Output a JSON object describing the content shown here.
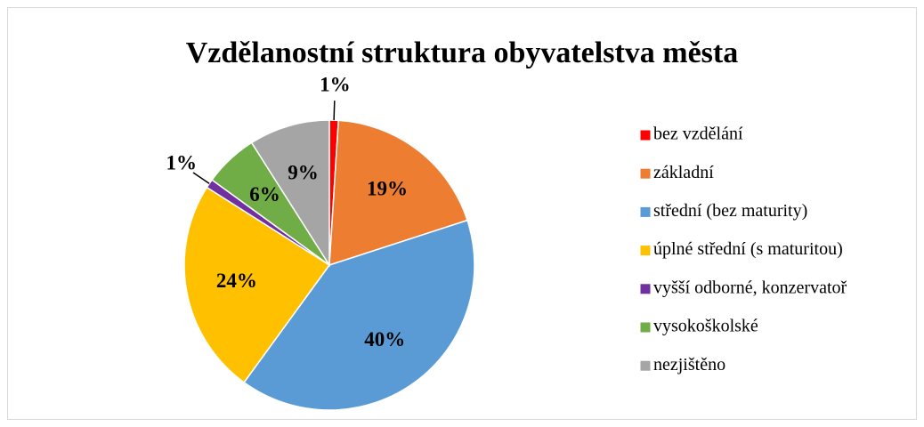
{
  "chart_data": {
    "type": "pie",
    "title": "Vzdělanostní struktura obyvatelstva města",
    "categories": [
      "bez vzdělání",
      "základní",
      "střední (bez maturity)",
      "úplné střední (s maturitou)",
      "vyšší odborné, konzervatoř",
      "vysokoškolské",
      "nezjištěno"
    ],
    "values": [
      1,
      19,
      40,
      24,
      1,
      6,
      9
    ],
    "value_labels": [
      "1%",
      "19%",
      "40%",
      "24%",
      "1%",
      "6%",
      "9%"
    ],
    "colors": [
      "#ff0000",
      "#ed7d31",
      "#5b9bd5",
      "#ffc000",
      "#7030a0",
      "#70ad47",
      "#a5a5a5"
    ],
    "legend": "right"
  }
}
